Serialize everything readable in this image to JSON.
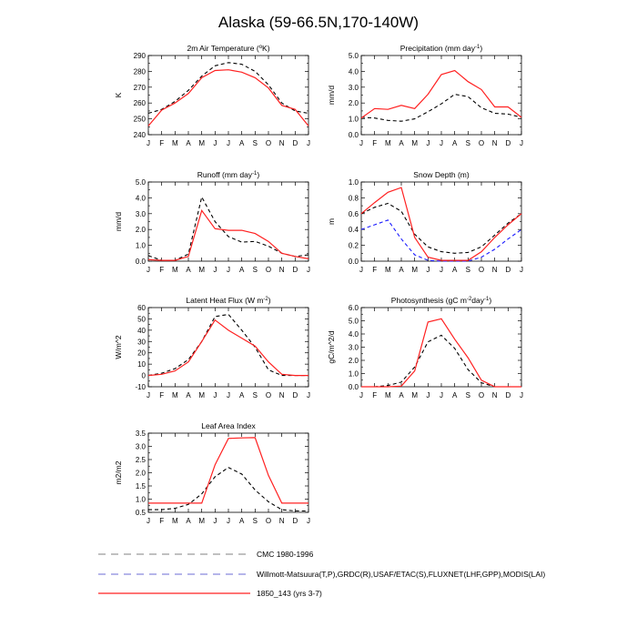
{
  "title": "Alaska (59-66.5N,170-140W)",
  "months": [
    "J",
    "F",
    "M",
    "A",
    "M",
    "J",
    "J",
    "A",
    "S",
    "O",
    "N",
    "D",
    "J"
  ],
  "colors": {
    "black": "#000000",
    "blue": "#1a1aff",
    "red": "#ff2020",
    "legend_gray": "#808080",
    "legend_blue": "#6b6bd6"
  },
  "chart_data": [
    {
      "type": "line",
      "title": "2m Air Temperature (°K)",
      "ylabel": "K",
      "ylim": [
        240,
        290
      ],
      "yticks": [
        "240",
        "250",
        "260",
        "270",
        "280",
        "290"
      ],
      "yticks_num": [
        240,
        250,
        260,
        270,
        280,
        290
      ],
      "series": [
        {
          "name": "CMC 1980-1996",
          "style": "black-dash",
          "values": [
            253.5,
            256,
            261,
            268,
            277,
            283.5,
            285.5,
            284.5,
            280,
            271.5,
            260,
            255,
            253.5
          ]
        },
        {
          "name": "1850_143 (yrs 3-7)",
          "style": "red",
          "values": [
            245.5,
            255.5,
            260,
            266,
            276,
            280.5,
            281,
            279.5,
            276,
            269.5,
            258.5,
            256,
            245.5
          ]
        }
      ]
    },
    {
      "type": "line",
      "title": "Precipitation (mm day-1)",
      "ylabel": "mm/d",
      "ylim": [
        0,
        5
      ],
      "yticks": [
        "0.0",
        "1.0",
        "2.0",
        "3.0",
        "4.0",
        "5.0"
      ],
      "yticks_num": [
        0,
        1,
        2,
        3,
        4,
        5
      ],
      "series": [
        {
          "name": "CMC 1980-1996",
          "style": "black-dash",
          "values": [
            1.1,
            1.05,
            0.9,
            0.85,
            1.0,
            1.45,
            1.95,
            2.55,
            2.4,
            1.7,
            1.35,
            1.3,
            1.1
          ]
        },
        {
          "name": "1850_143 (yrs 3-7)",
          "style": "red",
          "values": [
            1.05,
            1.65,
            1.6,
            1.85,
            1.65,
            2.55,
            3.8,
            4.05,
            3.35,
            2.85,
            1.75,
            1.75,
            1.1
          ]
        }
      ]
    },
    {
      "type": "line",
      "title": "Runoff (mm day-1)",
      "ylabel": "mm/d",
      "ylim": [
        0,
        5
      ],
      "yticks": [
        "0.0",
        "1.0",
        "2.0",
        "3.0",
        "4.0",
        "5.0"
      ],
      "yticks_num": [
        0,
        1,
        2,
        3,
        4,
        5
      ],
      "series": [
        {
          "name": "CMC 1980-1996",
          "style": "black-dash",
          "values": [
            0.35,
            0.05,
            0.05,
            0.45,
            4.05,
            2.5,
            1.55,
            1.2,
            1.25,
            0.95,
            0.5,
            0.3,
            0.4
          ]
        },
        {
          "name": "1850_143 (yrs 3-7)",
          "style": "red",
          "values": [
            0.1,
            0.05,
            0.05,
            0.3,
            3.2,
            2.05,
            1.95,
            1.95,
            1.75,
            1.25,
            0.5,
            0.3,
            0.15
          ]
        }
      ]
    },
    {
      "type": "line",
      "title": "Snow Depth (m)",
      "ylabel": "m",
      "ylim": [
        0,
        1.0
      ],
      "yticks": [
        "0.0",
        "0.2",
        "0.4",
        "0.6",
        "0.8",
        "1.0"
      ],
      "yticks_num": [
        0,
        0.2,
        0.4,
        0.6,
        0.8,
        1.0
      ],
      "series": [
        {
          "name": "CMC 1980-1996",
          "style": "black-dash",
          "values": [
            0.6,
            0.68,
            0.73,
            0.63,
            0.34,
            0.18,
            0.12,
            0.1,
            0.11,
            0.18,
            0.33,
            0.48,
            0.6
          ]
        },
        {
          "name": "Willmott-Matsuura(T,P),GRDC(R),USAF/ETAC(S),FLUXNET(LHF,GPP),MODIS(LAI)",
          "style": "blue-dash",
          "values": [
            0.4,
            0.46,
            0.52,
            0.28,
            0.08,
            0.01,
            0.0,
            0.0,
            0.0,
            0.05,
            0.15,
            0.28,
            0.4
          ]
        },
        {
          "name": "1850_143 (yrs 3-7)",
          "style": "red",
          "values": [
            0.6,
            0.74,
            0.87,
            0.93,
            0.3,
            0.05,
            0.01,
            0.01,
            0.01,
            0.12,
            0.3,
            0.46,
            0.6
          ]
        }
      ]
    },
    {
      "type": "line",
      "title": "Latent Heat Flux (W m-2)",
      "ylabel": "W/m^2",
      "ylim": [
        -10,
        60
      ],
      "yticks": [
        "-10",
        "0",
        "10",
        "20",
        "30",
        "40",
        "50",
        "60"
      ],
      "yticks_num": [
        -10,
        0,
        10,
        20,
        30,
        40,
        50,
        60
      ],
      "series": [
        {
          "name": "CMC 1980-1996",
          "style": "black-dash",
          "values": [
            0,
            2,
            6,
            14,
            30,
            52,
            54,
            40,
            25,
            5,
            0,
            0,
            0
          ]
        },
        {
          "name": "1850_143 (yrs 3-7)",
          "style": "red",
          "values": [
            0,
            1,
            4,
            12,
            30,
            49,
            40,
            33,
            26,
            12,
            1,
            0,
            0
          ]
        }
      ]
    },
    {
      "type": "line",
      "title": "Photosynthesis (gC m-2day-1)",
      "ylabel": "gC/m^2/d",
      "ylim": [
        0,
        6
      ],
      "yticks": [
        "0.0",
        "1.0",
        "2.0",
        "3.0",
        "4.0",
        "5.0",
        "6.0"
      ],
      "yticks_num": [
        0,
        1,
        2,
        3,
        4,
        5,
        6
      ],
      "series": [
        {
          "name": "CMC 1980-1996",
          "style": "black-dash",
          "values": [
            0,
            0,
            0.1,
            0.35,
            1.5,
            3.4,
            3.9,
            2.9,
            1.3,
            0.3,
            0,
            0,
            0
          ]
        },
        {
          "name": "1850_143 (yrs 3-7)",
          "style": "red",
          "values": [
            0,
            0,
            0,
            0.05,
            1.2,
            4.9,
            5.15,
            3.6,
            2.2,
            0.5,
            0,
            0,
            0
          ]
        }
      ]
    },
    {
      "type": "line",
      "title": "Leaf Area Index",
      "ylabel": "m2/m2",
      "ylim": [
        0.5,
        3.5
      ],
      "yticks": [
        "0.5",
        "1.0",
        "1.5",
        "2.0",
        "2.5",
        "3.0",
        "3.5"
      ],
      "yticks_num": [
        0.5,
        1.0,
        1.5,
        2.0,
        2.5,
        3.0,
        3.5
      ],
      "series": [
        {
          "name": "CMC 1980-1996",
          "style": "black-dash",
          "values": [
            0.6,
            0.6,
            0.65,
            0.8,
            1.2,
            1.85,
            2.2,
            1.95,
            1.35,
            0.9,
            0.6,
            0.55,
            0.55
          ]
        },
        {
          "name": "1850_143 (yrs 3-7)",
          "style": "red",
          "values": [
            0.85,
            0.85,
            0.85,
            0.85,
            0.85,
            2.3,
            3.3,
            3.32,
            3.33,
            1.9,
            0.85,
            0.85,
            0.85
          ]
        }
      ]
    }
  ],
  "legend": [
    {
      "label": "CMC 1980-1996",
      "style": "gray-dash"
    },
    {
      "label": "Willmott-Matsuura(T,P),GRDC(R),USAF/ETAC(S),FLUXNET(LHF,GPP),MODIS(LAI)",
      "style": "blue-dash"
    },
    {
      "label": "1850_143 (yrs 3-7)",
      "style": "red"
    }
  ]
}
